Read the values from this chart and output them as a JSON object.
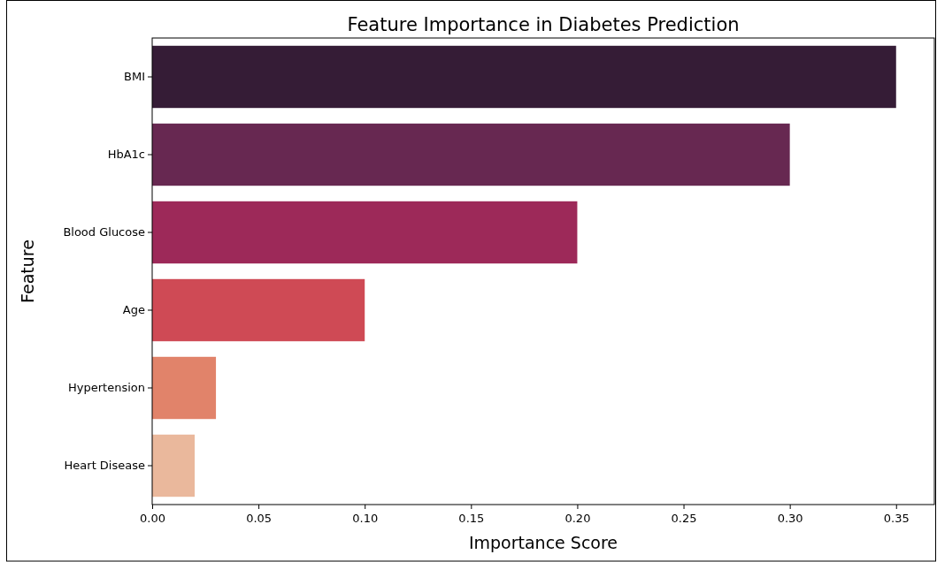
{
  "chart_data": {
    "type": "bar",
    "orientation": "horizontal",
    "title": "Feature Importance in Diabetes Prediction",
    "xlabel": "Importance Score",
    "ylabel": "Feature",
    "categories": [
      "BMI",
      "HbA1c",
      "Blood Glucose",
      "Age",
      "Hypertension",
      "Heart Disease"
    ],
    "values": [
      0.35,
      0.3,
      0.2,
      0.1,
      0.03,
      0.02
    ],
    "colors": [
      "#351c36",
      "#672851",
      "#9d2959",
      "#cf4a55",
      "#e1836a",
      "#eab89c"
    ],
    "xlim": [
      0,
      0.368
    ],
    "xticks": [
      {
        "value": 0,
        "label": "0.00"
      },
      {
        "value": 0.05,
        "label": "0.05"
      },
      {
        "value": 0.1,
        "label": "0.10"
      },
      {
        "value": 0.15,
        "label": "0.15"
      },
      {
        "value": 0.2,
        "label": "0.20"
      },
      {
        "value": 0.25,
        "label": "0.25"
      },
      {
        "value": 0.3,
        "label": "0.30"
      },
      {
        "value": 0.35,
        "label": "0.35"
      }
    ]
  }
}
